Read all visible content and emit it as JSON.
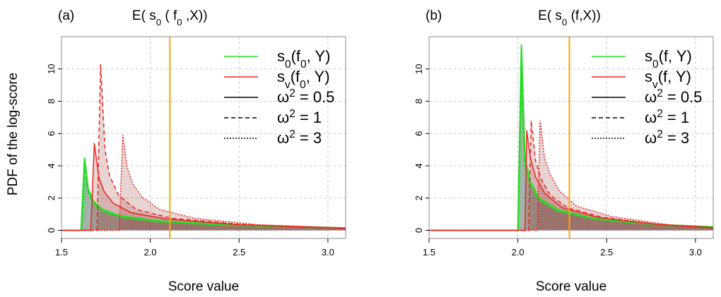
{
  "ylabel": "PDF of the log-score",
  "colors": {
    "green": "#22dd22",
    "red": "#ee2222",
    "orange": "#ffa500",
    "grid": "#cccccc"
  },
  "chart_data": [
    {
      "type": "line",
      "panel": "(a)",
      "title": [
        {
          "t": "E( s"
        },
        {
          "t": "0",
          "sub": true
        },
        {
          "t": " ( f"
        },
        {
          "t": "0",
          "sub": true
        },
        {
          "t": " ,X))"
        }
      ],
      "xlabel": "Score value",
      "xlim": [
        1.5,
        3.1
      ],
      "ylim": [
        -0.5,
        12
      ],
      "xticks": [
        "1.5",
        "2.0",
        "2.5",
        "3.0"
      ],
      "yticks": [
        "0",
        "2",
        "4",
        "6",
        "8",
        "10"
      ],
      "vline": 2.11,
      "legend_position": "top-right",
      "legend": [
        {
          "style": "green-solid",
          "label": [
            {
              "t": "s"
            },
            {
              "t": "0",
              "sub": true
            },
            {
              "t": "(f"
            },
            {
              "t": "0",
              "sub": true
            },
            {
              "t": ", Y)"
            }
          ]
        },
        {
          "style": "red-solid",
          "label": [
            {
              "t": "s"
            },
            {
              "t": "v",
              "sub": true
            },
            {
              "t": "(f"
            },
            {
              "t": "0",
              "sub": true
            },
            {
              "t": ", Y)"
            }
          ]
        },
        {
          "style": "black-solid",
          "label": [
            {
              "t": "ω"
            },
            {
              "t": "2",
              "sup": true
            },
            {
              "t": " = 0.5"
            }
          ]
        },
        {
          "style": "black-dashed",
          "label": [
            {
              "t": "ω"
            },
            {
              "t": "2",
              "sup": true
            },
            {
              "t": " = 1"
            }
          ]
        },
        {
          "style": "black-dotted",
          "label": [
            {
              "t": "ω"
            },
            {
              "t": "2",
              "sup": true
            },
            {
              "t": " = 3"
            }
          ]
        }
      ],
      "series": [
        {
          "name": "s0 ω2=0.5",
          "color": "green",
          "dash": "solid",
          "points": [
            [
              1.5,
              0
            ],
            [
              1.61,
              0
            ],
            [
              1.63,
              4.5
            ],
            [
              1.65,
              2.6
            ],
            [
              1.68,
              1.8
            ],
            [
              1.73,
              1.3
            ],
            [
              1.83,
              0.9
            ],
            [
              2.03,
              0.6
            ],
            [
              2.43,
              0.35
            ],
            [
              3.1,
              0.15
            ]
          ]
        },
        {
          "name": "s0 ω2=1",
          "color": "green",
          "dash": "dashed",
          "points": [
            [
              1.5,
              0
            ],
            [
              1.61,
              0
            ],
            [
              1.63,
              3.9
            ],
            [
              1.65,
              2.4
            ],
            [
              1.68,
              1.7
            ],
            [
              1.73,
              1.25
            ],
            [
              1.83,
              0.85
            ],
            [
              2.03,
              0.57
            ],
            [
              2.43,
              0.33
            ],
            [
              3.1,
              0.14
            ]
          ]
        },
        {
          "name": "s0 ω2=3",
          "color": "green",
          "dash": "dotted",
          "points": [
            [
              1.5,
              0
            ],
            [
              1.615,
              0
            ],
            [
              1.635,
              3.3
            ],
            [
              1.655,
              2.2
            ],
            [
              1.685,
              1.6
            ],
            [
              1.735,
              1.15
            ],
            [
              1.835,
              0.8
            ],
            [
              2.035,
              0.53
            ],
            [
              2.43,
              0.31
            ],
            [
              3.1,
              0.13
            ]
          ]
        },
        {
          "name": "sv ω2=0.5",
          "color": "red",
          "dash": "solid",
          "points": [
            [
              1.5,
              0
            ],
            [
              1.665,
              0
            ],
            [
              1.685,
              5.4
            ],
            [
              1.71,
              3.3
            ],
            [
              1.74,
              2.4
            ],
            [
              1.79,
              1.7
            ],
            [
              1.89,
              1.1
            ],
            [
              2.09,
              0.7
            ],
            [
              2.49,
              0.35
            ],
            [
              3.1,
              0.12
            ]
          ]
        },
        {
          "name": "sv ω2=1",
          "color": "red",
          "dash": "dashed",
          "points": [
            [
              1.5,
              0
            ],
            [
              1.7,
              0
            ],
            [
              1.72,
              10.3
            ],
            [
              1.745,
              5.0
            ],
            [
              1.77,
              3.4
            ],
            [
              1.82,
              2.2
            ],
            [
              1.92,
              1.3
            ],
            [
              2.12,
              0.75
            ],
            [
              2.5,
              0.38
            ],
            [
              3.1,
              0.12
            ]
          ]
        },
        {
          "name": "sv ω2=3",
          "color": "red",
          "dash": "dotted",
          "points": [
            [
              1.5,
              0
            ],
            [
              1.825,
              0
            ],
            [
              1.845,
              5.9
            ],
            [
              1.87,
              3.9
            ],
            [
              1.9,
              2.9
            ],
            [
              1.95,
              2.1
            ],
            [
              2.05,
              1.3
            ],
            [
              2.25,
              0.75
            ],
            [
              2.6,
              0.35
            ],
            [
              3.1,
              0.15
            ]
          ]
        }
      ]
    },
    {
      "type": "line",
      "panel": "(b)",
      "title": [
        {
          "t": "E( s"
        },
        {
          "t": "0",
          "sub": true
        },
        {
          "t": " (f,X))"
        }
      ],
      "xlabel": "Score value",
      "xlim": [
        1.5,
        3.1
      ],
      "ylim": [
        -0.5,
        12
      ],
      "xticks": [
        "1.5",
        "2.0",
        "2.5",
        "3.0"
      ],
      "yticks": [
        "0",
        "2",
        "4",
        "6",
        "8",
        "10"
      ],
      "vline": 2.29,
      "legend_position": "top-right",
      "legend": [
        {
          "style": "green-solid",
          "label": [
            {
              "t": "s"
            },
            {
              "t": "0",
              "sub": true
            },
            {
              "t": "(f, Y)"
            }
          ]
        },
        {
          "style": "red-solid",
          "label": [
            {
              "t": "s"
            },
            {
              "t": "v",
              "sub": true
            },
            {
              "t": "(f, Y)"
            }
          ]
        },
        {
          "style": "black-solid",
          "label": [
            {
              "t": "ω"
            },
            {
              "t": "2",
              "sup": true
            },
            {
              "t": " = 0.5"
            }
          ]
        },
        {
          "style": "black-dashed",
          "label": [
            {
              "t": "ω"
            },
            {
              "t": "2",
              "sup": true
            },
            {
              "t": " = 1"
            }
          ]
        },
        {
          "style": "black-dotted",
          "label": [
            {
              "t": "ω"
            },
            {
              "t": "2",
              "sup": true
            },
            {
              "t": " = 3"
            }
          ]
        }
      ],
      "series": [
        {
          "name": "s0 ω2=0.5",
          "color": "green",
          "dash": "solid",
          "points": [
            [
              1.5,
              0
            ],
            [
              2.0,
              0
            ],
            [
              2.02,
              11.5
            ],
            [
              2.04,
              4.5
            ],
            [
              2.07,
              3.0
            ],
            [
              2.12,
              2.0
            ],
            [
              2.22,
              1.3
            ],
            [
              2.42,
              0.75
            ],
            [
              2.8,
              0.35
            ],
            [
              3.1,
              0.22
            ]
          ]
        },
        {
          "name": "s0 ω2=1",
          "color": "green",
          "dash": "dashed",
          "points": [
            [
              1.5,
              0
            ],
            [
              2.0,
              0
            ],
            [
              2.02,
              10.0
            ],
            [
              2.04,
              4.2
            ],
            [
              2.07,
              2.9
            ],
            [
              2.12,
              1.95
            ],
            [
              2.22,
              1.25
            ],
            [
              2.42,
              0.72
            ],
            [
              2.8,
              0.33
            ],
            [
              3.1,
              0.2
            ]
          ]
        },
        {
          "name": "s0 ω2=3",
          "color": "green",
          "dash": "dotted",
          "points": [
            [
              1.5,
              0
            ],
            [
              2.0,
              0
            ],
            [
              2.02,
              9.0
            ],
            [
              2.04,
              3.9
            ],
            [
              2.07,
              2.7
            ],
            [
              2.12,
              1.85
            ],
            [
              2.22,
              1.2
            ],
            [
              2.42,
              0.7
            ],
            [
              2.8,
              0.32
            ],
            [
              3.1,
              0.19
            ]
          ]
        },
        {
          "name": "sv ω2=0.5",
          "color": "red",
          "dash": "solid",
          "points": [
            [
              1.5,
              0
            ],
            [
              2.04,
              0
            ],
            [
              2.05,
              6.2
            ],
            [
              2.07,
              4.5
            ],
            [
              2.1,
              3.3
            ],
            [
              2.15,
              2.3
            ],
            [
              2.25,
              1.4
            ],
            [
              2.45,
              0.8
            ],
            [
              2.8,
              0.35
            ],
            [
              3.1,
              0.15
            ]
          ]
        },
        {
          "name": "sv ω2=1",
          "color": "red",
          "dash": "dashed",
          "points": [
            [
              1.5,
              0
            ],
            [
              2.06,
              0
            ],
            [
              2.075,
              6.8
            ],
            [
              2.1,
              4.3
            ],
            [
              2.13,
              3.2
            ],
            [
              2.18,
              2.2
            ],
            [
              2.28,
              1.4
            ],
            [
              2.48,
              0.8
            ],
            [
              2.8,
              0.35
            ],
            [
              3.1,
              0.15
            ]
          ]
        },
        {
          "name": "sv ω2=3",
          "color": "red",
          "dash": "dotted",
          "points": [
            [
              1.5,
              0
            ],
            [
              2.11,
              0
            ],
            [
              2.125,
              6.8
            ],
            [
              2.15,
              4.5
            ],
            [
              2.18,
              3.5
            ],
            [
              2.23,
              2.5
            ],
            [
              2.33,
              1.5
            ],
            [
              2.53,
              0.85
            ],
            [
              2.85,
              0.35
            ],
            [
              3.1,
              0.18
            ]
          ]
        }
      ]
    }
  ]
}
